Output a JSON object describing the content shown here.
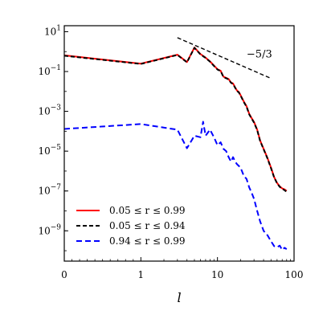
{
  "chart_data": {
    "type": "line",
    "title": "",
    "xlabel": "l",
    "ylabel": "",
    "xscale": "symlog",
    "yscale": "log",
    "xlim": [
      0,
      100
    ],
    "ylim": [
      3e-11,
      20.0
    ],
    "grid": false,
    "legend_position": "lower-left",
    "x_ticks": [
      {
        "value": 0,
        "label": "0"
      },
      {
        "value": 1,
        "label": "1"
      },
      {
        "value": 10,
        "label": "10"
      },
      {
        "value": 100,
        "label": "100"
      }
    ],
    "y_ticks": [
      {
        "exp": 1,
        "base": "10",
        "label": "1"
      },
      {
        "exp": -1,
        "base": "10",
        "label": "−1"
      },
      {
        "exp": -3,
        "base": "10",
        "label": "−3"
      },
      {
        "exp": -5,
        "base": "10",
        "label": "−5"
      },
      {
        "exp": -7,
        "base": "10",
        "label": "−7"
      },
      {
        "exp": -9,
        "base": "10",
        "label": "−9"
      }
    ],
    "annotation": {
      "text": "−5/3",
      "x": 24,
      "y": 0.5
    },
    "series": [
      {
        "name": "0.05 ≤ r ≤ 0.99",
        "color": "#ff0000",
        "style": "solid",
        "x": [
          0,
          1,
          3,
          4,
          5,
          6,
          7,
          8,
          9,
          10,
          11,
          12,
          13,
          14,
          15,
          16,
          17,
          18,
          19,
          20,
          22,
          24,
          26,
          28,
          30,
          33,
          36,
          40,
          45,
          50,
          55,
          60,
          65,
          70,
          75,
          80
        ],
        "y": [
          0.65,
          0.25,
          0.7,
          0.3,
          1.6,
          0.75,
          0.5,
          0.32,
          0.2,
          0.13,
          0.11,
          0.055,
          0.048,
          0.042,
          0.028,
          0.025,
          0.016,
          0.011,
          0.0095,
          0.0065,
          0.0032,
          0.0018,
          0.00075,
          0.00045,
          0.00029,
          0.00012,
          3.5e-05,
          1.3e-05,
          4.5e-06,
          1.5e-06,
          5e-07,
          2.5e-07,
          1.7e-07,
          1.35e-07,
          1.2e-07,
          1e-07
        ]
      },
      {
        "name": "0.05 ≤ r ≤ 0.94",
        "color": "#000000",
        "style": "dashed",
        "x": [
          0,
          1,
          3,
          4,
          5,
          6,
          7,
          8,
          9,
          10,
          11,
          12,
          13,
          14,
          15,
          16,
          17,
          18,
          19,
          20,
          22,
          24,
          26,
          28,
          30,
          33,
          36,
          40,
          45,
          50,
          55,
          60,
          65,
          70,
          75,
          80
        ],
        "y": [
          0.62,
          0.24,
          0.68,
          0.29,
          1.55,
          0.72,
          0.48,
          0.31,
          0.19,
          0.125,
          0.105,
          0.052,
          0.046,
          0.04,
          0.027,
          0.024,
          0.0155,
          0.0105,
          0.009,
          0.0062,
          0.003,
          0.0017,
          0.0007,
          0.00043,
          0.00027,
          0.000115,
          3.3e-05,
          1.25e-05,
          4.3e-06,
          1.4e-06,
          4.8e-07,
          2.4e-07,
          1.6e-07,
          1.3e-07,
          1.1e-07,
          9e-08
        ]
      },
      {
        "name": "0.94 ≤ r ≤ 0.99",
        "color": "#0000ff",
        "style": "dashed",
        "x": [
          0,
          1,
          3,
          4,
          5,
          6,
          6.5,
          7,
          8,
          9,
          10,
          11,
          12,
          13,
          14,
          15,
          16,
          17,
          18,
          20,
          22,
          24,
          26,
          28,
          30,
          33,
          36,
          40,
          45,
          50,
          55,
          60,
          65,
          70,
          75,
          80
        ],
        "y": [
          0.00013,
          0.00023,
          0.00012,
          1.4e-05,
          6e-05,
          5e-05,
          0.0003,
          6e-05,
          0.00012,
          5e-05,
          2e-05,
          2.8e-05,
          1.3e-05,
          1e-05,
          5e-06,
          3e-06,
          5e-06,
          3e-06,
          2.2e-06,
          1.5e-06,
          6e-07,
          4e-07,
          1.5e-07,
          8e-08,
          4e-08,
          1e-08,
          3e-09,
          1e-09,
          6e-10,
          3e-10,
          1.7e-10,
          1.5e-10,
          1.8e-10,
          1.1e-10,
          1.4e-10,
          1.2e-10
        ]
      },
      {
        "name": "",
        "color": "#000000",
        "style": "dashed",
        "role": "slope guide",
        "x": [
          3,
          50
        ],
        "y": [
          5,
          0.045
        ]
      }
    ]
  }
}
